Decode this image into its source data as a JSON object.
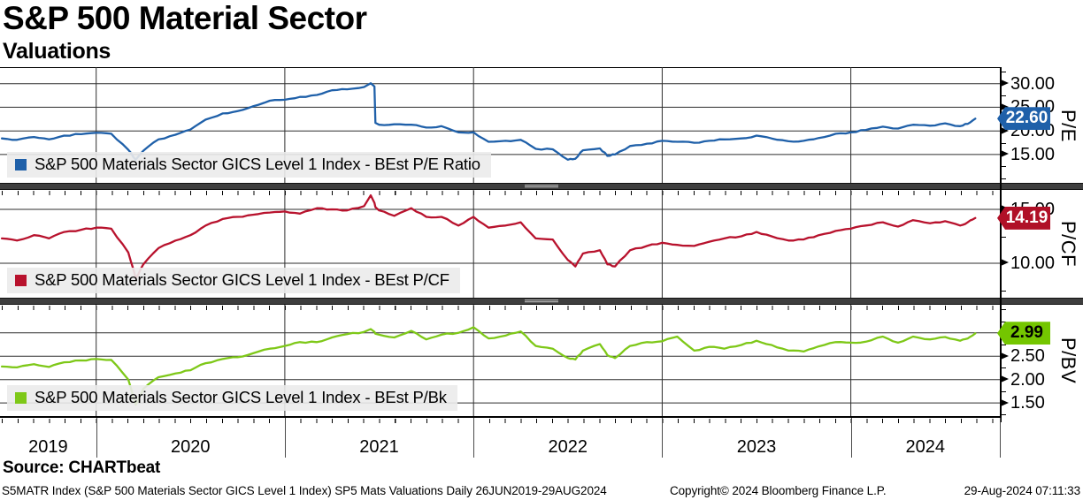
{
  "header": {
    "title": "S&P 500 Material Sector",
    "subtitle": "Valuations"
  },
  "source_line": "Source: CHARTbeat",
  "footer": {
    "left": "S5MATR Index (S&P 500 Materials Sector GICS Level 1 Index) SP5 Mats Valuations  Daily 26JUN2019-29AUG2024",
    "center": "Copyright© 2024 Bloomberg Finance L.P.",
    "right": "29-Aug-2024 07:11:33"
  },
  "colors": {
    "blue": "#1f60a9",
    "red": "#b8122d",
    "green": "#7ec818",
    "legend_bg": "#ebebeb",
    "splitter": "#3e3e3e"
  },
  "chart_data": {
    "type": "line",
    "title": "S&P 500 Material Sector - Valuations",
    "x_unit": "decimal_year",
    "x_range_axis": [
      2019.49,
      2024.79
    ],
    "x_gridline_years": [
      2020,
      2021,
      2022,
      2023,
      2024
    ],
    "x_labels": [
      "2019",
      "2020",
      "2021",
      "2022",
      "2023",
      "2024"
    ],
    "date_range_label": "Daily 26JUN2019-29AUG2024",
    "x": [
      2019.5,
      2019.58,
      2019.67,
      2019.75,
      2019.83,
      2019.92,
      2020.0,
      2020.08,
      2020.17,
      2020.21,
      2020.25,
      2020.33,
      2020.42,
      2020.5,
      2020.58,
      2020.67,
      2020.75,
      2020.83,
      2020.92,
      2021.0,
      2021.08,
      2021.17,
      2021.25,
      2021.33,
      2021.42,
      2021.455,
      2021.475,
      2021.48,
      2021.5,
      2021.58,
      2021.67,
      2021.75,
      2021.83,
      2021.92,
      2022.0,
      2022.08,
      2022.17,
      2022.25,
      2022.33,
      2022.42,
      2022.5,
      2022.54,
      2022.58,
      2022.67,
      2022.71,
      2022.75,
      2022.83,
      2022.92,
      2023.0,
      2023.08,
      2023.17,
      2023.25,
      2023.33,
      2023.42,
      2023.5,
      2023.58,
      2023.67,
      2023.75,
      2023.83,
      2023.92,
      2024.0,
      2024.08,
      2024.17,
      2024.25,
      2024.33,
      2024.42,
      2024.5,
      2024.58,
      2024.62,
      2024.66
    ],
    "panels": [
      {
        "name": "pe",
        "legend": "S&P 500 Materials Sector GICS Level 1 Index - BEst P/E Ratio",
        "axis_label": "P/E",
        "color": "#1f60a9",
        "badge_bg": "#1f60a9",
        "badge_text_color": "#ffffff",
        "last_label": "22.60",
        "last_value": 22.6,
        "ylim": [
          9.0,
          33.5
        ],
        "ytick_values": [
          15,
          20,
          25,
          30
        ],
        "ytick_labels": [
          "15.00",
          "20.00",
          "25.00",
          "30.00"
        ],
        "values": [
          18.4,
          18.1,
          18.7,
          18.2,
          19.0,
          19.3,
          19.6,
          19.4,
          16.0,
          13.9,
          15.8,
          18.2,
          19.2,
          20.3,
          22.4,
          23.7,
          24.2,
          25.2,
          26.4,
          26.6,
          27.2,
          27.6,
          28.6,
          28.8,
          29.3,
          30.1,
          29.4,
          21.7,
          21.3,
          21.4,
          21.3,
          20.7,
          21.0,
          19.7,
          19.7,
          17.7,
          17.9,
          18.1,
          16.2,
          16.1,
          13.9,
          14.1,
          15.9,
          16.3,
          14.7,
          15.0,
          16.8,
          17.3,
          17.9,
          17.7,
          17.5,
          17.9,
          18.2,
          18.4,
          19.0,
          18.4,
          17.8,
          17.9,
          18.5,
          19.4,
          19.7,
          20.2,
          20.9,
          20.5,
          21.3,
          21.1,
          21.6,
          21.0,
          21.5,
          22.6
        ]
      },
      {
        "name": "pcf",
        "legend": "S&P 500 Materials Sector GICS Level 1 Index - BEst P/CF",
        "axis_label": "P/CF",
        "color": "#b8122d",
        "badge_bg": "#b01027",
        "badge_text_color": "#ffffff",
        "last_label": "14.19",
        "last_value": 14.19,
        "ylim": [
          6.8,
          16.8
        ],
        "ytick_values": [
          10,
          15
        ],
        "ytick_labels": [
          "10.00",
          "15.00"
        ],
        "values": [
          12.3,
          12.1,
          12.6,
          12.3,
          12.9,
          13.1,
          13.3,
          13.2,
          11.0,
          8.6,
          9.9,
          11.4,
          12.1,
          12.6,
          13.5,
          14.1,
          14.3,
          14.5,
          14.7,
          14.8,
          14.6,
          15.1,
          15.0,
          14.9,
          15.3,
          16.3,
          15.6,
          15.2,
          14.9,
          14.4,
          15.1,
          14.3,
          14.3,
          13.5,
          14.3,
          13.3,
          13.5,
          13.8,
          12.3,
          12.2,
          10.3,
          9.7,
          10.9,
          11.2,
          9.9,
          9.7,
          11.2,
          11.6,
          11.9,
          11.7,
          11.6,
          12.0,
          12.3,
          12.5,
          12.9,
          12.5,
          12.1,
          12.2,
          12.6,
          13.0,
          13.2,
          13.5,
          13.8,
          13.4,
          14.0,
          13.7,
          13.9,
          13.5,
          13.8,
          14.19
        ]
      },
      {
        "name": "pbv",
        "legend": "S&P 500 Materials Sector GICS Level 1 Index - BEst P/Bk",
        "axis_label": "P/BV",
        "color": "#7ec818",
        "badge_bg": "#74c600",
        "badge_text_color": "#000000",
        "last_label": "2.99",
        "last_value": 2.99,
        "ylim": [
          1.2,
          3.6
        ],
        "ytick_values": [
          1.5,
          2.0,
          2.5,
          3.0
        ],
        "ytick_labels": [
          "1.50",
          "2.00",
          "2.50",
          "3.00"
        ],
        "values": [
          2.28,
          2.26,
          2.33,
          2.27,
          2.37,
          2.41,
          2.44,
          2.42,
          2.0,
          1.46,
          1.8,
          2.05,
          2.13,
          2.2,
          2.35,
          2.44,
          2.48,
          2.56,
          2.66,
          2.72,
          2.8,
          2.8,
          2.9,
          2.97,
          3.02,
          3.08,
          3.02,
          2.98,
          2.96,
          2.9,
          3.04,
          2.86,
          2.96,
          3.0,
          3.12,
          2.88,
          2.94,
          3.03,
          2.72,
          2.66,
          2.46,
          2.43,
          2.62,
          2.76,
          2.52,
          2.46,
          2.72,
          2.8,
          2.82,
          2.92,
          2.62,
          2.7,
          2.66,
          2.74,
          2.83,
          2.74,
          2.62,
          2.6,
          2.71,
          2.8,
          2.79,
          2.81,
          2.92,
          2.79,
          2.92,
          2.86,
          2.91,
          2.83,
          2.88,
          2.99
        ]
      }
    ]
  }
}
